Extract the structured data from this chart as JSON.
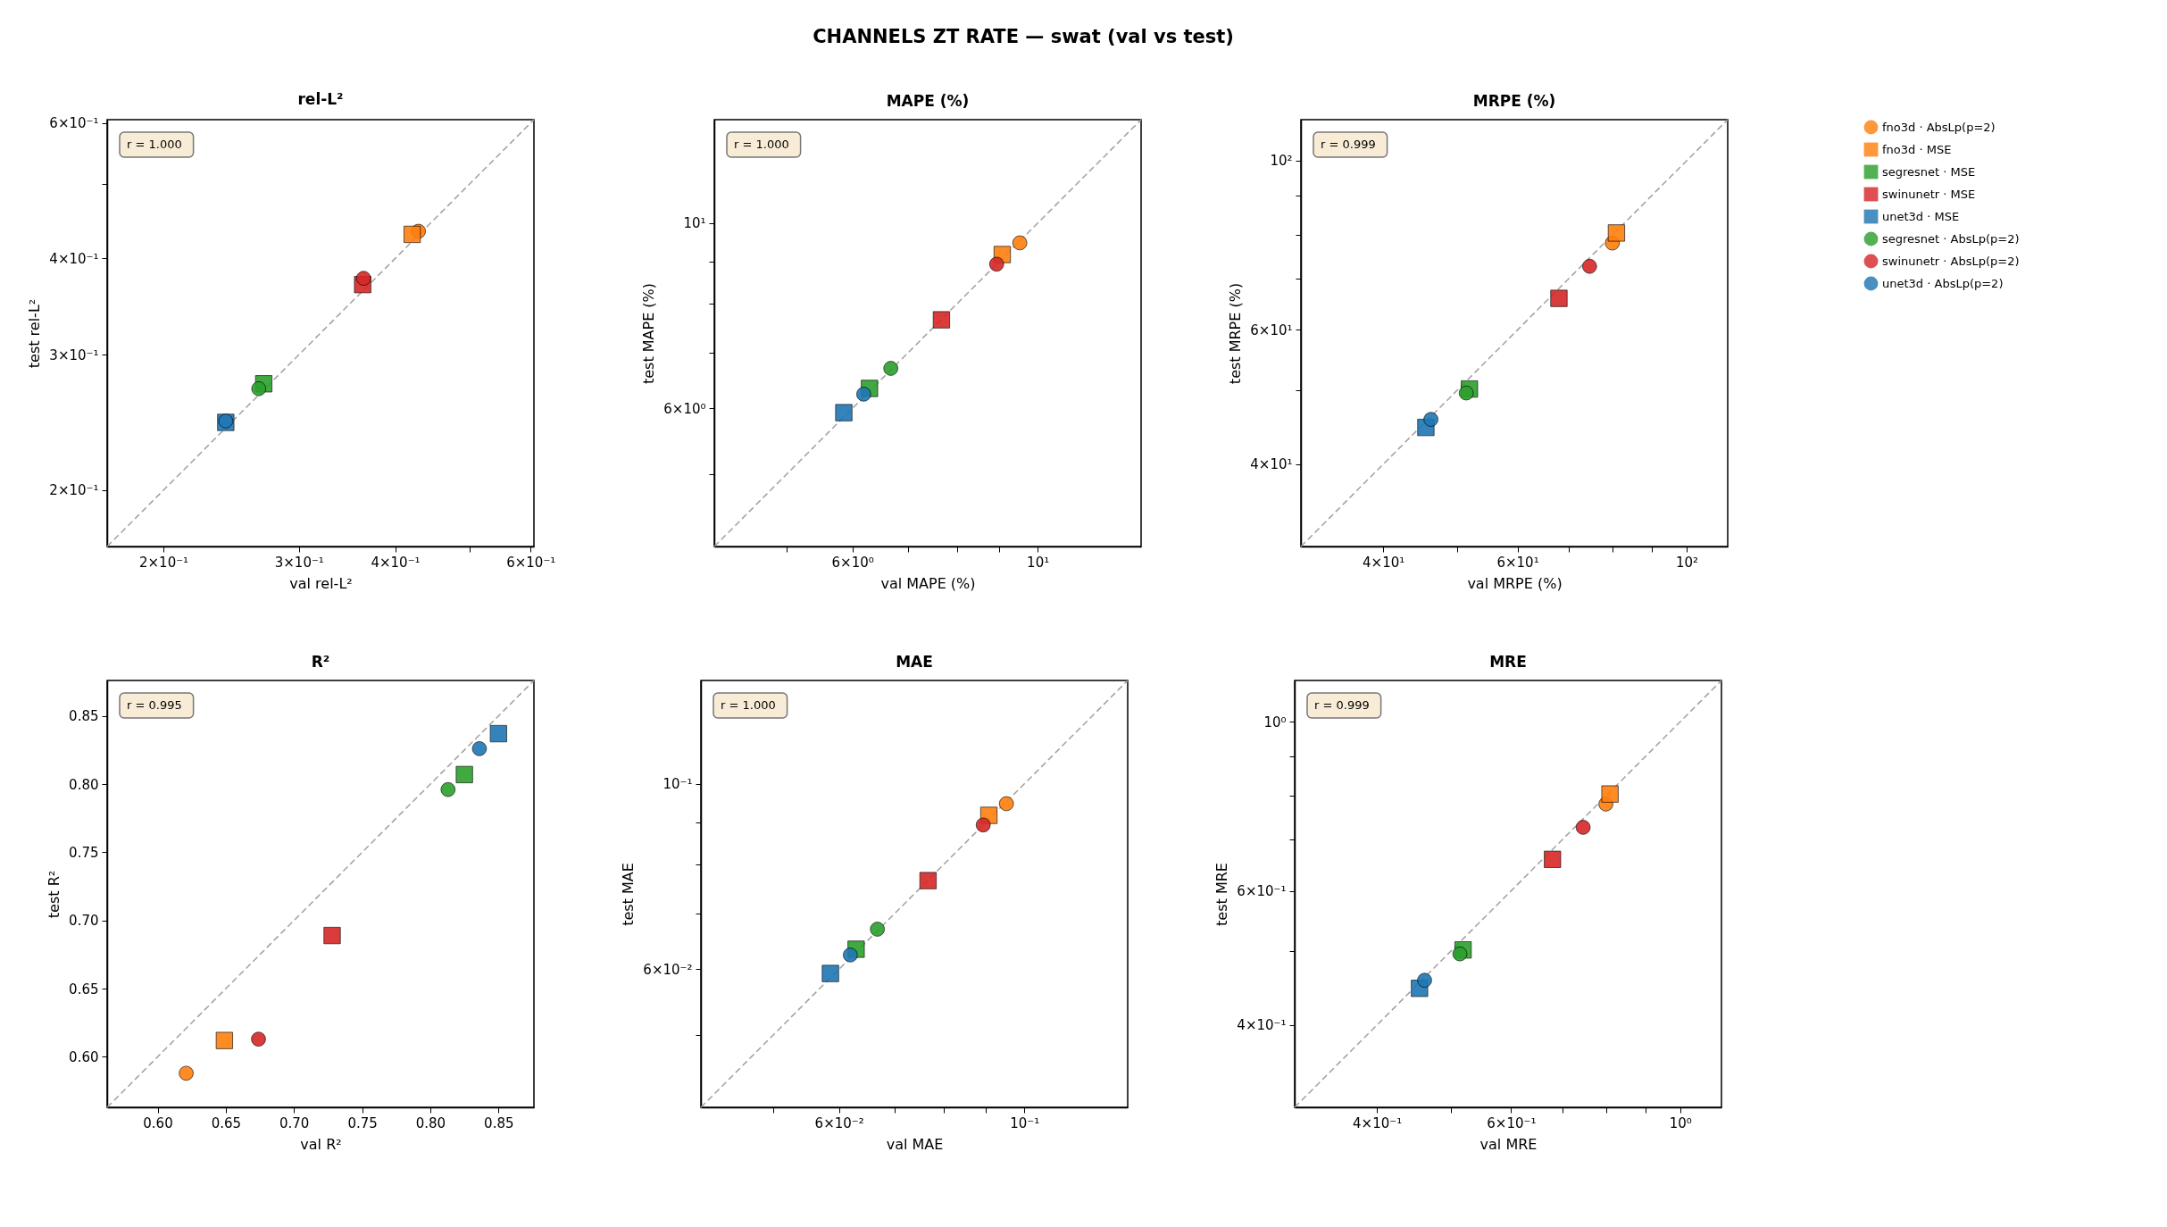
{
  "chart_data": [
    {
      "type": "scatter",
      "title": "rel-L²",
      "xlabel": "val rel-L²",
      "ylabel": "test rel-L²",
      "annotations": [
        "r = 1.000"
      ],
      "log": "xy",
      "legend": "right",
      "xlim": [
        0.169,
        0.606
      ],
      "ylim": [
        0.169,
        0.606
      ],
      "xticks": [
        {
          "value": 0.2,
          "label": "2×10⁻¹"
        },
        {
          "value": 0.3,
          "label": "3×10⁻¹"
        },
        {
          "value": 0.4,
          "label": "4×10⁻¹"
        },
        {
          "value": 0.5,
          "label": null
        },
        {
          "value": 0.6,
          "label": "6×10⁻¹"
        }
      ],
      "yticks": [
        {
          "value": 0.2,
          "label": "2×10⁻¹"
        },
        {
          "value": 0.3,
          "label": "3×10⁻¹"
        },
        {
          "value": 0.4,
          "label": "4×10⁻¹"
        },
        {
          "value": 0.5,
          "label": null
        },
        {
          "value": 0.6,
          "label": "6×10⁻¹"
        }
      ],
      "series": [
        {
          "type": "line",
          "color": "#a0a0a0",
          "line_style": "dashed",
          "x": [
            0.169,
            0.606
          ],
          "values": [
            0.169,
            0.606
          ]
        },
        {
          "name": "fno3d · AbsLp(p=2)",
          "color": "#ff7f0e",
          "marker": "circle",
          "x": [
            0.429
          ],
          "values": [
            0.434
          ]
        },
        {
          "name": "fno3d · MSE",
          "color": "#ff7f0e",
          "marker": "square",
          "x": [
            0.421
          ],
          "values": [
            0.43
          ]
        },
        {
          "name": "segresnet · MSE",
          "color": "#2ca02c",
          "marker": "square",
          "x": [
            0.27
          ],
          "values": [
            0.275
          ]
        },
        {
          "name": "swinunetr · MSE",
          "color": "#d62728",
          "marker": "square",
          "x": [
            0.363
          ],
          "values": [
            0.37
          ]
        },
        {
          "name": "unet3d · MSE",
          "color": "#1f77b4",
          "marker": "square",
          "x": [
            0.241
          ],
          "values": [
            0.245
          ]
        },
        {
          "name": "segresnet · AbsLp(p=2)",
          "color": "#2ca02c",
          "marker": "circle",
          "x": [
            0.266
          ],
          "values": [
            0.271
          ]
        },
        {
          "name": "swinunetr · AbsLp(p=2)",
          "color": "#d62728",
          "marker": "circle",
          "x": [
            0.364
          ],
          "values": [
            0.377
          ]
        },
        {
          "name": "unet3d · AbsLp(p=2)",
          "color": "#1f77b4",
          "marker": "circle",
          "x": [
            0.241
          ],
          "values": [
            0.246
          ]
        }
      ]
    },
    {
      "type": "scatter",
      "title": "CHANNELS ZT RATE — swat (val vs test)",
      "subtitle": "MAPE (%)",
      "xlabel": "val MAPE (%)",
      "ylabel": "test MAPE (%)",
      "annotations": [
        "r = 1.000"
      ],
      "log": "xy",
      "legend": "right",
      "xlim": [
        4.1,
        13.3
      ],
      "ylim": [
        4.1,
        13.3
      ],
      "xticks": [
        {
          "value": 5,
          "label": null
        },
        {
          "value": 6,
          "label": "6×10⁰"
        },
        {
          "value": 7,
          "label": null
        },
        {
          "value": 8,
          "label": null
        },
        {
          "value": 9,
          "label": null
        },
        {
          "value": 10,
          "label": "10¹"
        }
      ],
      "yticks": [
        {
          "value": 5,
          "label": null
        },
        {
          "value": 6,
          "label": "6×10⁰"
        },
        {
          "value": 7,
          "label": null
        },
        {
          "value": 8,
          "label": null
        },
        {
          "value": 9,
          "label": null
        },
        {
          "value": 10,
          "label": "10¹"
        }
      ],
      "series": [
        {
          "type": "line",
          "color": "#a0a0a0",
          "line_style": "dashed",
          "x": [
            4.1,
            13.3
          ],
          "values": [
            4.1,
            13.3
          ]
        },
        {
          "name": "fno3d · AbsLp(p=2)",
          "color": "#ff7f0e",
          "marker": "circle",
          "x": [
            9.52
          ],
          "values": [
            9.47
          ]
        },
        {
          "name": "fno3d · MSE",
          "color": "#ff7f0e",
          "marker": "square",
          "x": [
            9.07
          ],
          "values": [
            9.17
          ]
        },
        {
          "name": "segresnet · MSE",
          "color": "#2ca02c",
          "marker": "square",
          "x": [
            6.29
          ],
          "values": [
            6.34
          ]
        },
        {
          "name": "swinunetr · MSE",
          "color": "#d62728",
          "marker": "square",
          "x": [
            7.67
          ],
          "values": [
            7.66
          ]
        },
        {
          "name": "unet3d · MSE",
          "color": "#1f77b4",
          "marker": "square",
          "x": [
            5.86
          ],
          "values": [
            5.93
          ]
        },
        {
          "name": "segresnet · AbsLp(p=2)",
          "color": "#2ca02c",
          "marker": "circle",
          "x": [
            6.67
          ],
          "values": [
            6.7
          ]
        },
        {
          "name": "swinunetr · AbsLp(p=2)",
          "color": "#d62728",
          "marker": "circle",
          "x": [
            8.93
          ],
          "values": [
            8.93
          ]
        },
        {
          "name": "unet3d · AbsLp(p=2)",
          "color": "#1f77b4",
          "marker": "circle",
          "x": [
            6.19
          ],
          "values": [
            6.24
          ]
        }
      ]
    },
    {
      "type": "scatter",
      "title": "MRPE (%)",
      "xlabel": "val MRPE (%)",
      "ylabel": "test MRPE (%)",
      "annotations": [
        "r = 0.999"
      ],
      "log": "xy",
      "legend": "right",
      "xlim": [
        31.2,
        113.2
      ],
      "ylim": [
        31.2,
        113.2
      ],
      "xticks": [
        {
          "value": 40,
          "label": "4×10¹"
        },
        {
          "value": 50,
          "label": null
        },
        {
          "value": 60,
          "label": "6×10¹"
        },
        {
          "value": 70,
          "label": null
        },
        {
          "value": 80,
          "label": null
        },
        {
          "value": 90,
          "label": null
        },
        {
          "value": 100,
          "label": "10²"
        }
      ],
      "yticks": [
        {
          "value": 40,
          "label": "4×10¹"
        },
        {
          "value": 50,
          "label": null
        },
        {
          "value": 60,
          "label": "6×10¹"
        },
        {
          "value": 70,
          "label": null
        },
        {
          "value": 80,
          "label": null
        },
        {
          "value": 90,
          "label": null
        },
        {
          "value": 100,
          "label": "10²"
        }
      ],
      "series": [
        {
          "type": "line",
          "color": "#a0a0a0",
          "line_style": "dashed",
          "x": [
            31.2,
            113.2
          ],
          "values": [
            31.2,
            113.2
          ]
        },
        {
          "name": "fno3d · AbsLp(p=2)",
          "color": "#ff7f0e",
          "marker": "circle",
          "x": [
            79.9
          ],
          "values": [
            78.0
          ]
        },
        {
          "name": "fno3d · MSE",
          "color": "#ff7f0e",
          "marker": "square",
          "x": [
            80.9
          ],
          "values": [
            80.4
          ]
        },
        {
          "name": "segresnet · MSE",
          "color": "#2ca02c",
          "marker": "square",
          "x": [
            51.9
          ],
          "values": [
            50.2
          ]
        },
        {
          "name": "swinunetr · MSE",
          "color": "#d62728",
          "marker": "square",
          "x": [
            68.0
          ],
          "values": [
            66.0
          ]
        },
        {
          "name": "unet3d · MSE",
          "color": "#1f77b4",
          "marker": "square",
          "x": [
            45.5
          ],
          "values": [
            44.7
          ]
        },
        {
          "name": "segresnet · AbsLp(p=2)",
          "color": "#2ca02c",
          "marker": "circle",
          "x": [
            51.4
          ],
          "values": [
            49.6
          ]
        },
        {
          "name": "swinunetr · AbsLp(p=2)",
          "color": "#d62728",
          "marker": "circle",
          "x": [
            74.6
          ],
          "values": [
            72.7
          ]
        },
        {
          "name": "unet3d · AbsLp(p=2)",
          "color": "#1f77b4",
          "marker": "circle",
          "x": [
            46.2
          ],
          "values": [
            45.8
          ]
        }
      ]
    },
    {
      "type": "scatter",
      "title": "R²",
      "xlabel": "val R²",
      "ylabel": "test R²",
      "annotations": [
        "r = 0.995"
      ],
      "legend": "right",
      "xlim": [
        0.563,
        0.876
      ],
      "ylim": [
        0.563,
        0.876
      ],
      "xticks": [
        {
          "value": 0.6,
          "label": "0.60"
        },
        0.65,
        {
          "value": 0.7,
          "label": "0.70"
        },
        0.75,
        {
          "value": 0.8,
          "label": "0.80"
        },
        0.85
      ],
      "yticks": [
        {
          "value": 0.6,
          "label": "0.60"
        },
        0.65,
        {
          "value": 0.7,
          "label": "0.70"
        },
        0.75,
        {
          "value": 0.8,
          "label": "0.80"
        },
        0.85
      ],
      "series": [
        {
          "type": "line",
          "color": "#a0a0a0",
          "line_style": "dashed",
          "x": [
            0.563,
            0.876
          ],
          "values": [
            0.563,
            0.876
          ]
        },
        {
          "name": "fno3d · AbsLp(p=2)",
          "color": "#ff7f0e",
          "marker": "circle",
          "x": [
            0.621
          ],
          "values": [
            0.588
          ]
        },
        {
          "name": "fno3d · MSE",
          "color": "#ff7f0e",
          "marker": "square",
          "x": [
            0.649
          ],
          "values": [
            0.612
          ]
        },
        {
          "name": "segresnet · MSE",
          "color": "#2ca02c",
          "marker": "square",
          "x": [
            0.825
          ],
          "values": [
            0.807
          ]
        },
        {
          "name": "swinunetr · MSE",
          "color": "#d62728",
          "marker": "square",
          "x": [
            0.728
          ],
          "values": [
            0.689
          ]
        },
        {
          "name": "unet3d · MSE",
          "color": "#1f77b4",
          "marker": "square",
          "x": [
            0.85
          ],
          "values": [
            0.837
          ]
        },
        {
          "name": "segresnet · AbsLp(p=2)",
          "color": "#2ca02c",
          "marker": "circle",
          "x": [
            0.813
          ],
          "values": [
            0.796
          ]
        },
        {
          "name": "swinunetr · AbsLp(p=2)",
          "color": "#d62728",
          "marker": "circle",
          "x": [
            0.674
          ],
          "values": [
            0.613
          ]
        },
        {
          "name": "unet3d · AbsLp(p=2)",
          "color": "#1f77b4",
          "marker": "circle",
          "x": [
            0.836
          ],
          "values": [
            0.826
          ]
        }
      ]
    },
    {
      "type": "scatter",
      "title": "MAE",
      "xlabel": "val MAE",
      "ylabel": "test MAE",
      "annotations": [
        "r = 1.000"
      ],
      "log": "xy",
      "legend": "right",
      "xlim": [
        0.041,
        0.133
      ],
      "ylim": [
        0.041,
        0.133
      ],
      "xticks": [
        {
          "value": 0.05,
          "label": null
        },
        {
          "value": 0.06,
          "label": "6×10⁻²"
        },
        {
          "value": 0.07,
          "label": null
        },
        {
          "value": 0.08,
          "label": null
        },
        {
          "value": 0.09,
          "label": null
        },
        {
          "value": 0.1,
          "label": "10⁻¹"
        }
      ],
      "yticks": [
        {
          "value": 0.05,
          "label": null
        },
        {
          "value": 0.06,
          "label": "6×10⁻²"
        },
        {
          "value": 0.07,
          "label": null
        },
        {
          "value": 0.08,
          "label": null
        },
        {
          "value": 0.09,
          "label": null
        },
        {
          "value": 0.1,
          "label": "10⁻¹"
        }
      ],
      "series": [
        {
          "type": "line",
          "color": "#a0a0a0",
          "line_style": "dashed",
          "x": [
            0.041,
            0.133
          ],
          "values": [
            0.041,
            0.133
          ]
        },
        {
          "name": "fno3d · AbsLp(p=2)",
          "color": "#ff7f0e",
          "marker": "circle",
          "x": [
            0.0952
          ],
          "values": [
            0.0947
          ]
        },
        {
          "name": "fno3d · MSE",
          "color": "#ff7f0e",
          "marker": "square",
          "x": [
            0.0907
          ],
          "values": [
            0.0917
          ]
        },
        {
          "name": "segresnet · MSE",
          "color": "#2ca02c",
          "marker": "square",
          "x": [
            0.0629
          ],
          "values": [
            0.0634
          ]
        },
        {
          "name": "swinunetr · MSE",
          "color": "#d62728",
          "marker": "square",
          "x": [
            0.0767
          ],
          "values": [
            0.0766
          ]
        },
        {
          "name": "unet3d · MSE",
          "color": "#1f77b4",
          "marker": "square",
          "x": [
            0.0586
          ],
          "values": [
            0.0593
          ]
        },
        {
          "name": "segresnet · AbsLp(p=2)",
          "color": "#2ca02c",
          "marker": "circle",
          "x": [
            0.0667
          ],
          "values": [
            0.067
          ]
        },
        {
          "name": "swinunetr · AbsLp(p=2)",
          "color": "#d62728",
          "marker": "circle",
          "x": [
            0.0893
          ],
          "values": [
            0.0893
          ]
        },
        {
          "name": "unet3d · AbsLp(p=2)",
          "color": "#1f77b4",
          "marker": "circle",
          "x": [
            0.0619
          ],
          "values": [
            0.0624
          ]
        }
      ]
    },
    {
      "type": "scatter",
      "title": "MRE",
      "xlabel": "val MRE",
      "ylabel": "test MRE",
      "annotations": [
        "r = 0.999"
      ],
      "log": "xy",
      "legend": "right",
      "xlim": [
        0.312,
        1.133
      ],
      "ylim": [
        0.312,
        1.133
      ],
      "xticks": [
        {
          "value": 0.4,
          "label": "4×10⁻¹"
        },
        {
          "value": 0.5,
          "label": null
        },
        {
          "value": 0.6,
          "label": "6×10⁻¹"
        },
        {
          "value": 0.7,
          "label": null
        },
        {
          "value": 0.8,
          "label": null
        },
        {
          "value": 0.9,
          "label": null
        },
        {
          "value": 1,
          "label": "10⁰"
        }
      ],
      "yticks": [
        {
          "value": 0.4,
          "label": "4×10⁻¹"
        },
        {
          "value": 0.5,
          "label": null
        },
        {
          "value": 0.6,
          "label": "6×10⁻¹"
        },
        {
          "value": 0.7,
          "label": null
        },
        {
          "value": 0.8,
          "label": null
        },
        {
          "value": 0.9,
          "label": null
        },
        {
          "value": 1,
          "label": "10⁰"
        }
      ],
      "series": [
        {
          "type": "line",
          "color": "#a0a0a0",
          "line_style": "dashed",
          "x": [
            0.312,
            1.133
          ],
          "values": [
            0.312,
            1.133
          ]
        },
        {
          "name": "fno3d · AbsLp(p=2)",
          "color": "#ff7f0e",
          "marker": "circle",
          "x": [
            0.799
          ],
          "values": [
            0.78
          ]
        },
        {
          "name": "fno3d · MSE",
          "color": "#ff7f0e",
          "marker": "square",
          "x": [
            0.809
          ],
          "values": [
            0.804
          ]
        },
        {
          "name": "segresnet · MSE",
          "color": "#2ca02c",
          "marker": "square",
          "x": [
            0.519
          ],
          "values": [
            0.502
          ]
        },
        {
          "name": "swinunetr · MSE",
          "color": "#d62728",
          "marker": "square",
          "x": [
            0.68
          ],
          "values": [
            0.66
          ]
        },
        {
          "name": "unet3d · MSE",
          "color": "#1f77b4",
          "marker": "square",
          "x": [
            0.455
          ],
          "values": [
            0.447
          ]
        },
        {
          "name": "segresnet · AbsLp(p=2)",
          "color": "#2ca02c",
          "marker": "circle",
          "x": [
            0.514
          ],
          "values": [
            0.496
          ]
        },
        {
          "name": "swinunetr · AbsLp(p=2)",
          "color": "#d62728",
          "marker": "circle",
          "x": [
            0.746
          ],
          "values": [
            0.727
          ]
        },
        {
          "name": "unet3d · AbsLp(p=2)",
          "color": "#1f77b4",
          "marker": "circle",
          "x": [
            0.462
          ],
          "values": [
            0.458
          ]
        }
      ]
    }
  ]
}
